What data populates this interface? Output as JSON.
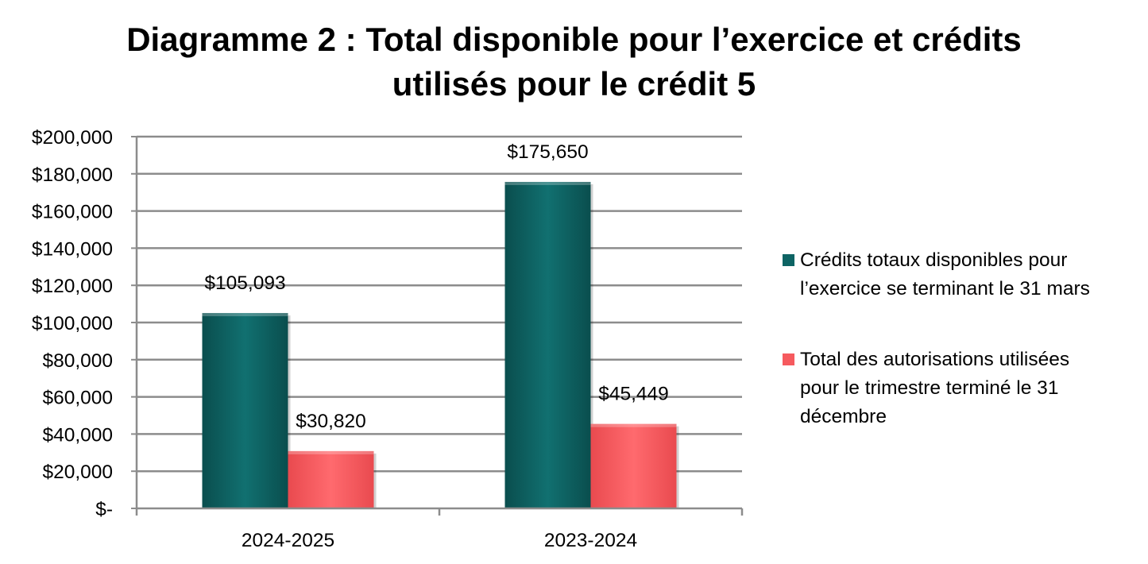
{
  "chart_data": {
    "type": "bar",
    "title": "Diagramme 2 : Total disponible pour l’exercice et crédits utilisés pour le crédit 5",
    "title_lines": [
      "Diagramme 2 : Total disponible pour l’exercice et crédits",
      "utilisés pour le crédit 5"
    ],
    "categories": [
      "2024-2025",
      "2023-2024"
    ],
    "series": [
      {
        "name": "Crédits totaux disponibles pour l’exercice se terminant le 31 mars",
        "values": [
          105093,
          175650
        ],
        "labels": [
          "$105,093",
          "$175,650"
        ],
        "color": "#0e6464"
      },
      {
        "name": "Total des autorisations utilisées pour le trimestre terminé le 31 décembre",
        "values": [
          30820,
          45449
        ],
        "labels": [
          "$30,820",
          "$45,449"
        ],
        "color": "#f65a5e"
      }
    ],
    "ylim": [
      0,
      200000
    ],
    "yticks": [
      0,
      20000,
      40000,
      60000,
      80000,
      100000,
      120000,
      140000,
      160000,
      180000,
      200000
    ],
    "ytick_labels": [
      "$-",
      "$20,000",
      "$40,000",
      "$60,000",
      "$80,000",
      "$100,000",
      "$120,000",
      "$140,000",
      "$160,000",
      "$180,000",
      "$200,000"
    ],
    "xlabel": "",
    "ylabel": "",
    "grid": true,
    "legend_position": "right"
  },
  "legend": {
    "items": [
      {
        "text_lines": [
          "Crédits totaux disponibles pour",
          "l’exercice se terminant le 31 mars"
        ],
        "color": "#0e6464"
      },
      {
        "text_lines": [
          "Total des autorisations utilisées",
          "pour le trimestre terminé le 31",
          "décembre"
        ],
        "color": "#f65a5e"
      }
    ]
  }
}
